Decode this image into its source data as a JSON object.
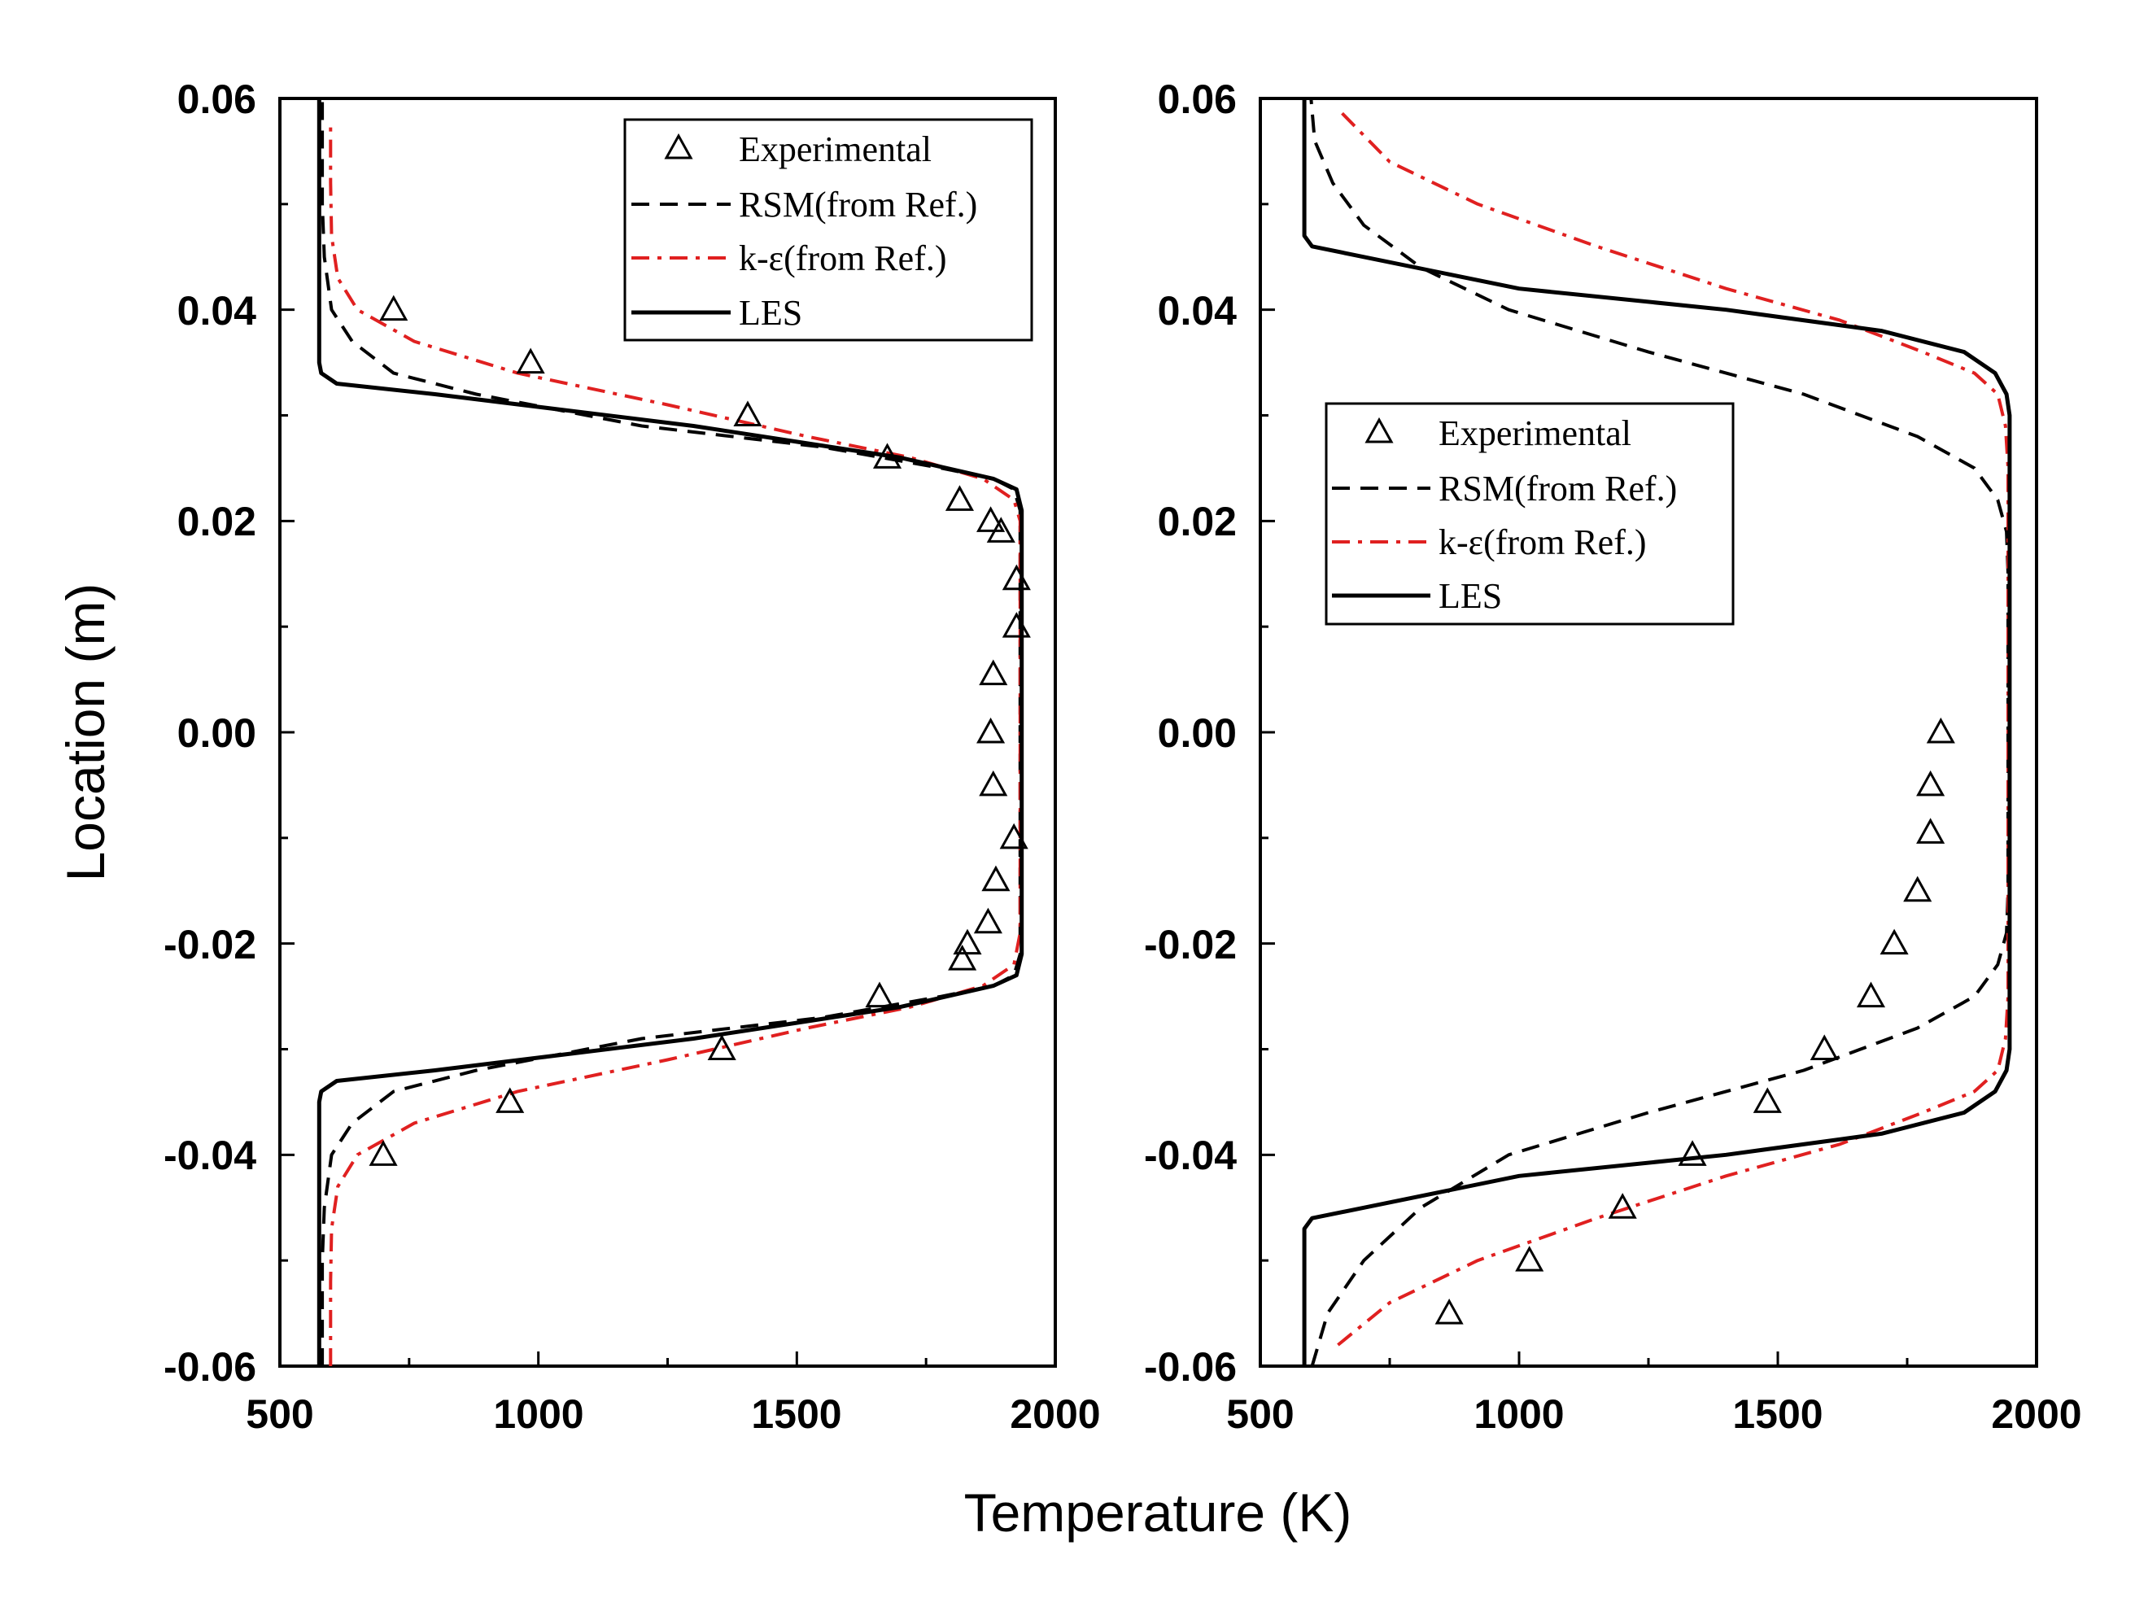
{
  "chart_data": [
    {
      "type": "line",
      "panel": "left",
      "xlabel": "Temperature (K)",
      "ylabel": "Location (m)",
      "xlim": [
        500,
        2000
      ],
      "ylim": [
        -0.06,
        0.06
      ],
      "xticks": [
        "500",
        "1000",
        "1500",
        "2000"
      ],
      "yticks": [
        "-0.06",
        "-0.04",
        "-0.02",
        "0.00",
        "0.02",
        "0.04",
        "0.06"
      ],
      "legend_position": "top-right",
      "series": [
        {
          "name": "Experimental",
          "style": "triangle-markers",
          "color": "#000000",
          "x": [
            720,
            985,
            1405,
            1675,
            1815,
            1875,
            1895,
            1925,
            1925,
            1880,
            1875,
            1880,
            1920,
            1885,
            1870,
            1830,
            1820,
            1660,
            1355,
            945,
            700
          ],
          "y": [
            0.04,
            0.035,
            0.03,
            0.026,
            0.022,
            0.02,
            0.019,
            0.0145,
            0.01,
            0.0055,
            0.0,
            -0.005,
            -0.01,
            -0.014,
            -0.018,
            -0.02,
            -0.0215,
            -0.025,
            -0.03,
            -0.035,
            -0.04
          ]
        },
        {
          "name": "RSM(from Ref.)",
          "style": "dashed",
          "color": "#000000",
          "x": [
            582,
            582,
            586,
            600,
            640,
            720,
            880,
            1200,
            1550,
            1780,
            1880,
            1920,
            1932,
            1932,
            1920,
            1880,
            1780,
            1550,
            1200,
            880,
            720,
            640,
            600,
            586,
            582,
            582
          ],
          "y": [
            -0.06,
            -0.05,
            -0.045,
            -0.04,
            -0.037,
            -0.034,
            -0.032,
            -0.029,
            -0.027,
            -0.025,
            -0.024,
            -0.023,
            -0.021,
            0.021,
            0.023,
            0.024,
            0.025,
            0.027,
            0.029,
            0.032,
            0.034,
            0.037,
            0.04,
            0.045,
            0.05,
            0.06
          ]
        },
        {
          "name": "k-ε(from Ref.)",
          "style": "dash-dot",
          "color": "#e02020",
          "x": [
            598,
            598,
            600,
            612,
            650,
            760,
            960,
            1250,
            1520,
            1720,
            1860,
            1920,
            1932,
            1932,
            1920,
            1860,
            1720,
            1520,
            1250,
            960,
            760,
            650,
            612,
            600,
            598,
            598
          ],
          "y": [
            -0.06,
            -0.052,
            -0.047,
            -0.043,
            -0.04,
            -0.037,
            -0.034,
            -0.031,
            -0.028,
            -0.026,
            -0.024,
            -0.022,
            -0.019,
            0.02,
            0.022,
            0.024,
            0.026,
            0.028,
            0.031,
            0.034,
            0.037,
            0.04,
            0.043,
            0.047,
            0.052,
            0.058
          ]
        },
        {
          "name": "LES",
          "style": "solid",
          "color": "#000000",
          "x": [
            576,
            576,
            580,
            610,
            800,
            1300,
            1700,
            1880,
            1925,
            1935,
            1935,
            1925,
            1880,
            1700,
            1300,
            800,
            610,
            580,
            576,
            576
          ],
          "y": [
            -0.06,
            -0.035,
            -0.034,
            -0.033,
            -0.032,
            -0.029,
            -0.026,
            -0.024,
            -0.023,
            -0.021,
            0.021,
            0.023,
            0.024,
            0.026,
            0.029,
            0.032,
            0.033,
            0.034,
            0.035,
            0.06
          ]
        }
      ]
    },
    {
      "type": "line",
      "panel": "right",
      "xlabel": "Temperature (K)",
      "ylabel": "",
      "xlim": [
        500,
        2000
      ],
      "ylim": [
        -0.06,
        0.06
      ],
      "xticks": [
        "500",
        "1000",
        "1500",
        "2000"
      ],
      "yticks": [
        "-0.06",
        "-0.04",
        "-0.02",
        "0.00",
        "0.02",
        "0.04",
        "0.06"
      ],
      "legend_position": "middle-left",
      "series": [
        {
          "name": "Experimental",
          "style": "triangle-markers",
          "color": "#000000",
          "x": [
            1815,
            1795,
            1795,
            1770,
            1725,
            1680,
            1590,
            1480,
            1335,
            1200,
            1020,
            865
          ],
          "y": [
            0.0,
            -0.005,
            -0.0095,
            -0.015,
            -0.02,
            -0.025,
            -0.03,
            -0.035,
            -0.04,
            -0.045,
            -0.05,
            -0.055
          ]
        },
        {
          "name": "RSM(from Ref.)",
          "style": "dashed",
          "color": "#000000",
          "x": [
            600,
            630,
            700,
            810,
            980,
            1250,
            1550,
            1770,
            1880,
            1925,
            1942,
            1945,
            1945,
            1942,
            1925,
            1880,
            1770,
            1550,
            1250,
            980,
            810,
            700,
            640,
            605,
            598
          ],
          "y": [
            -0.06,
            -0.055,
            -0.05,
            -0.045,
            -0.04,
            -0.036,
            -0.032,
            -0.028,
            -0.025,
            -0.022,
            -0.019,
            -0.015,
            0.015,
            0.019,
            0.022,
            0.025,
            0.028,
            0.032,
            0.036,
            0.04,
            0.044,
            0.048,
            0.052,
            0.056,
            0.06
          ]
        },
        {
          "name": "k-ε(from Ref.)",
          "style": "dash-dot",
          "color": "#e02020",
          "x": [
            650,
            750,
            920,
            1150,
            1400,
            1620,
            1780,
            1880,
            1925,
            1940,
            1945,
            1945,
            1940,
            1925,
            1880,
            1780,
            1620,
            1400,
            1150,
            920,
            750,
            650
          ],
          "y": [
            -0.058,
            -0.054,
            -0.05,
            -0.046,
            -0.042,
            -0.039,
            -0.036,
            -0.034,
            -0.032,
            -0.029,
            -0.025,
            0.025,
            0.029,
            0.032,
            0.034,
            0.036,
            0.039,
            0.042,
            0.046,
            0.05,
            0.054,
            0.059
          ]
        },
        {
          "name": "LES",
          "style": "solid",
          "color": "#000000",
          "x": [
            585,
            585,
            600,
            700,
            1000,
            1400,
            1700,
            1860,
            1920,
            1942,
            1948,
            1948,
            1942,
            1920,
            1860,
            1700,
            1400,
            1000,
            700,
            600,
            585,
            585
          ],
          "y": [
            -0.06,
            -0.047,
            -0.046,
            -0.045,
            -0.042,
            -0.04,
            -0.038,
            -0.036,
            -0.034,
            -0.032,
            -0.03,
            0.03,
            0.032,
            0.034,
            0.036,
            0.038,
            0.04,
            0.042,
            0.045,
            0.046,
            0.047,
            0.06
          ]
        }
      ]
    }
  ]
}
